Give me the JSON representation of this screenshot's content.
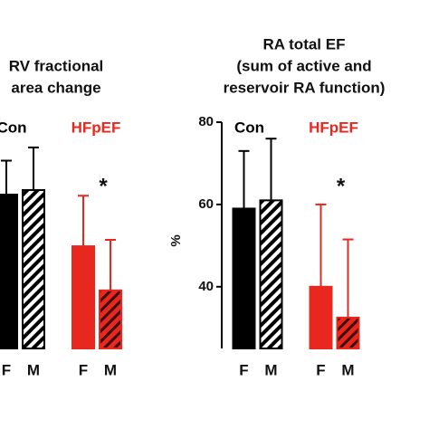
{
  "chart_data": [
    {
      "type": "bar",
      "title_lines": [
        "RV fractional",
        "area  change"
      ],
      "categories": [
        "F",
        "M"
      ],
      "hatch": [
        false,
        true
      ],
      "series": [
        {
          "name": "Con",
          "color": "#000000",
          "values": [
            40.8,
            42
          ],
          "errors": [
            9,
            11.3
          ]
        },
        {
          "name": "HFpEF",
          "color": "#e8281e",
          "values": [
            27.1,
            15.4
          ],
          "errors": [
            13.4,
            13.4
          ],
          "annotation": "*"
        }
      ],
      "ylim": [
        0,
        60
      ]
    },
    {
      "type": "bar",
      "title_lines": [
        "RA total EF",
        "(sum of active and",
        "reservoir RA function)"
      ],
      "y_label": "%",
      "categories": [
        "F",
        "M"
      ],
      "hatch": [
        false,
        true
      ],
      "series": [
        {
          "name": "Con",
          "color": "#000000",
          "values": [
            59,
            61
          ],
          "errors": [
            14,
            15
          ]
        },
        {
          "name": "HFpEF",
          "color": "#e8281e",
          "values": [
            40,
            32.5
          ],
          "errors": [
            20,
            19
          ],
          "annotation": "*"
        }
      ],
      "ylim": [
        25,
        80
      ],
      "yticks": [
        40,
        60,
        80
      ]
    }
  ]
}
